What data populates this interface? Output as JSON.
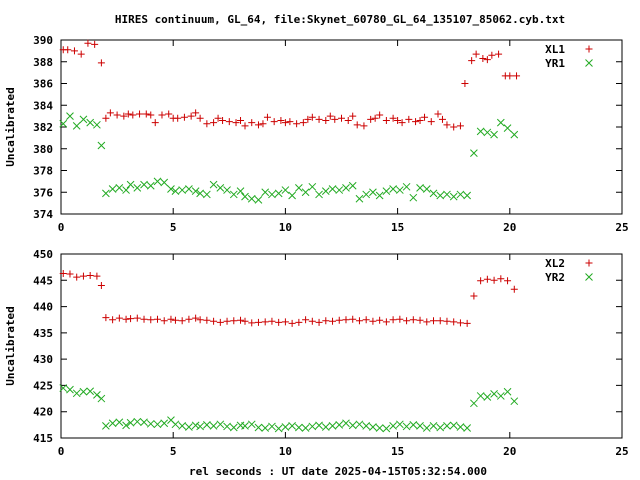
{
  "title": "HIRES continuum, GL_64, file:Skynet_60780_GL_64_135107_85062.cyb.txt",
  "xlabel": "rel seconds : UT date 2025-04-15T05:32:54.000",
  "chart_data": [
    {
      "type": "scatter",
      "ylabel": "Uncalibrated",
      "xlim": [
        0,
        25
      ],
      "ylim": [
        374,
        390
      ],
      "xticks": [
        0,
        5,
        10,
        15,
        20,
        25
      ],
      "yticks": [
        374,
        376,
        378,
        380,
        382,
        384,
        386,
        388,
        390
      ],
      "legend_position": "top-right",
      "series": [
        {
          "name": "XL1",
          "marker": "plus",
          "color": "#cc0000",
          "x": [
            0.1,
            0.3,
            0.6,
            0.9,
            1.2,
            1.5,
            1.8,
            2.0,
            2.2,
            2.5,
            2.8,
            3.0,
            3.2,
            3.5,
            3.8,
            4.0,
            4.2,
            4.5,
            4.8,
            5.0,
            5.2,
            5.5,
            5.8,
            6.0,
            6.2,
            6.5,
            6.8,
            7.0,
            7.2,
            7.5,
            7.8,
            8.0,
            8.2,
            8.5,
            8.8,
            9.0,
            9.2,
            9.5,
            9.8,
            10.0,
            10.2,
            10.5,
            10.8,
            11.0,
            11.2,
            11.5,
            11.8,
            12.0,
            12.2,
            12.5,
            12.8,
            13.0,
            13.2,
            13.5,
            13.8,
            14.0,
            14.2,
            14.5,
            14.8,
            15.0,
            15.2,
            15.5,
            15.8,
            16.0,
            16.2,
            16.5,
            16.8,
            17.0,
            17.2,
            17.5,
            17.8,
            18.0,
            18.3,
            18.5,
            18.8,
            19.0,
            19.2,
            19.5,
            19.8,
            20.0,
            20.3
          ],
          "y": [
            389.1,
            389.1,
            389.0,
            388.7,
            389.7,
            389.6,
            387.9,
            382.8,
            383.3,
            383.1,
            383.0,
            383.2,
            383.1,
            383.2,
            383.2,
            383.1,
            382.4,
            383.1,
            383.2,
            382.8,
            382.8,
            382.9,
            383.0,
            383.3,
            382.8,
            382.3,
            382.4,
            382.8,
            382.6,
            382.5,
            382.4,
            382.6,
            382.1,
            382.4,
            382.2,
            382.3,
            382.9,
            382.5,
            382.6,
            382.4,
            382.5,
            382.3,
            382.4,
            382.7,
            382.9,
            382.7,
            382.6,
            383.0,
            382.7,
            382.8,
            382.6,
            383.0,
            382.2,
            382.1,
            382.7,
            382.8,
            383.1,
            382.6,
            382.8,
            382.6,
            382.4,
            382.7,
            382.5,
            382.6,
            382.9,
            382.5,
            383.2,
            382.7,
            382.2,
            382.0,
            382.1,
            386.0,
            388.1,
            388.7,
            388.3,
            388.2,
            388.6,
            388.7,
            386.7,
            386.7,
            386.7
          ]
        },
        {
          "name": "YR1",
          "marker": "cross",
          "color": "#22aa22",
          "x": [
            0.1,
            0.4,
            0.7,
            1.0,
            1.3,
            1.6,
            1.8,
            2.0,
            2.3,
            2.6,
            2.9,
            3.1,
            3.4,
            3.7,
            4.0,
            4.3,
            4.6,
            4.9,
            5.1,
            5.4,
            5.7,
            6.0,
            6.2,
            6.5,
            6.8,
            7.1,
            7.4,
            7.7,
            8.0,
            8.2,
            8.5,
            8.8,
            9.1,
            9.4,
            9.7,
            10.0,
            10.3,
            10.6,
            10.9,
            11.2,
            11.5,
            11.8,
            12.1,
            12.4,
            12.7,
            13.0,
            13.3,
            13.6,
            13.9,
            14.2,
            14.5,
            14.8,
            15.1,
            15.4,
            15.7,
            16.0,
            16.3,
            16.6,
            16.9,
            17.2,
            17.5,
            17.8,
            18.1,
            18.4,
            18.7,
            19.0,
            19.3,
            19.6,
            19.9,
            20.2
          ],
          "y": [
            382.3,
            383.0,
            382.1,
            382.7,
            382.4,
            382.2,
            380.3,
            375.9,
            376.3,
            376.4,
            376.2,
            376.7,
            376.4,
            376.7,
            376.6,
            377.0,
            376.9,
            376.3,
            376.1,
            376.2,
            376.3,
            376.1,
            375.9,
            375.8,
            376.7,
            376.4,
            376.2,
            375.8,
            376.1,
            375.6,
            375.4,
            375.3,
            376.0,
            375.8,
            375.9,
            376.2,
            375.7,
            376.4,
            376.0,
            376.5,
            375.8,
            376.1,
            376.3,
            376.2,
            376.4,
            376.6,
            375.4,
            375.8,
            376.0,
            375.7,
            376.1,
            376.3,
            376.2,
            376.5,
            375.5,
            376.4,
            376.3,
            375.9,
            375.7,
            375.8,
            375.6,
            375.8,
            375.7,
            379.6,
            381.6,
            381.5,
            381.3,
            382.4,
            381.9,
            381.3
          ]
        }
      ]
    },
    {
      "type": "scatter",
      "ylabel": "Uncalibrated",
      "xlim": [
        0,
        25
      ],
      "ylim": [
        415,
        450
      ],
      "xticks": [
        0,
        5,
        10,
        15,
        20,
        25
      ],
      "yticks": [
        415,
        420,
        425,
        430,
        435,
        440,
        445,
        450
      ],
      "legend_position": "top-right",
      "series": [
        {
          "name": "XL2",
          "marker": "plus",
          "color": "#cc0000",
          "x": [
            0.1,
            0.4,
            0.7,
            1.0,
            1.3,
            1.6,
            1.8,
            2.0,
            2.3,
            2.6,
            2.9,
            3.1,
            3.4,
            3.7,
            4.0,
            4.3,
            4.6,
            4.9,
            5.1,
            5.4,
            5.7,
            6.0,
            6.2,
            6.5,
            6.8,
            7.1,
            7.4,
            7.7,
            8.0,
            8.2,
            8.5,
            8.8,
            9.1,
            9.4,
            9.7,
            10.0,
            10.3,
            10.6,
            10.9,
            11.2,
            11.5,
            11.8,
            12.1,
            12.4,
            12.7,
            13.0,
            13.3,
            13.6,
            13.9,
            14.2,
            14.5,
            14.8,
            15.1,
            15.4,
            15.7,
            16.0,
            16.3,
            16.6,
            16.9,
            17.2,
            17.5,
            17.8,
            18.1,
            18.4,
            18.7,
            19.0,
            19.3,
            19.6,
            19.9,
            20.2
          ],
          "y": [
            446.3,
            446.2,
            445.6,
            445.8,
            445.9,
            445.8,
            444.0,
            437.9,
            437.5,
            437.8,
            437.6,
            437.7,
            437.8,
            437.6,
            437.5,
            437.6,
            437.3,
            437.6,
            437.4,
            437.3,
            437.6,
            437.8,
            437.5,
            437.4,
            437.2,
            437.0,
            437.2,
            437.3,
            437.4,
            437.2,
            436.9,
            437.0,
            437.1,
            437.2,
            437.0,
            437.1,
            436.8,
            437.0,
            437.5,
            437.2,
            437.0,
            437.3,
            437.2,
            437.4,
            437.5,
            437.6,
            437.3,
            437.5,
            437.2,
            437.4,
            437.1,
            437.5,
            437.6,
            437.3,
            437.5,
            437.4,
            437.1,
            437.3,
            437.3,
            437.2,
            437.1,
            436.9,
            436.8,
            442.0,
            444.9,
            445.2,
            445.0,
            445.3,
            444.9,
            443.3
          ]
        },
        {
          "name": "YR2",
          "marker": "cross",
          "color": "#22aa22",
          "x": [
            0.1,
            0.4,
            0.7,
            1.0,
            1.3,
            1.6,
            1.8,
            2.0,
            2.3,
            2.6,
            2.9,
            3.1,
            3.4,
            3.7,
            4.0,
            4.3,
            4.6,
            4.9,
            5.1,
            5.4,
            5.7,
            6.0,
            6.2,
            6.5,
            6.8,
            7.1,
            7.4,
            7.7,
            8.0,
            8.2,
            8.5,
            8.8,
            9.1,
            9.4,
            9.7,
            10.0,
            10.3,
            10.6,
            10.9,
            11.2,
            11.5,
            11.8,
            12.1,
            12.4,
            12.7,
            13.0,
            13.3,
            13.6,
            13.9,
            14.2,
            14.5,
            14.8,
            15.1,
            15.4,
            15.7,
            16.0,
            16.3,
            16.6,
            16.9,
            17.2,
            17.5,
            17.8,
            18.1,
            18.4,
            18.7,
            19.0,
            19.3,
            19.6,
            19.9,
            20.2
          ],
          "y": [
            424.5,
            424.2,
            423.5,
            423.8,
            423.9,
            423.2,
            422.5,
            417.3,
            417.8,
            418.0,
            417.4,
            417.9,
            418.1,
            418.0,
            417.7,
            417.6,
            417.8,
            418.4,
            417.6,
            417.3,
            417.1,
            417.4,
            417.2,
            417.5,
            417.3,
            417.6,
            417.2,
            417.0,
            417.4,
            417.3,
            417.6,
            417.0,
            416.9,
            417.2,
            416.8,
            417.1,
            417.3,
            417.0,
            416.9,
            417.2,
            417.4,
            417.1,
            417.3,
            417.5,
            417.8,
            417.4,
            417.6,
            417.3,
            417.1,
            416.9,
            416.8,
            417.3,
            417.6,
            417.2,
            417.5,
            417.3,
            416.9,
            417.3,
            417.0,
            417.3,
            417.4,
            417.1,
            416.9,
            421.6,
            423.0,
            422.8,
            423.4,
            423.0,
            423.8,
            422.0
          ]
        }
      ]
    }
  ]
}
